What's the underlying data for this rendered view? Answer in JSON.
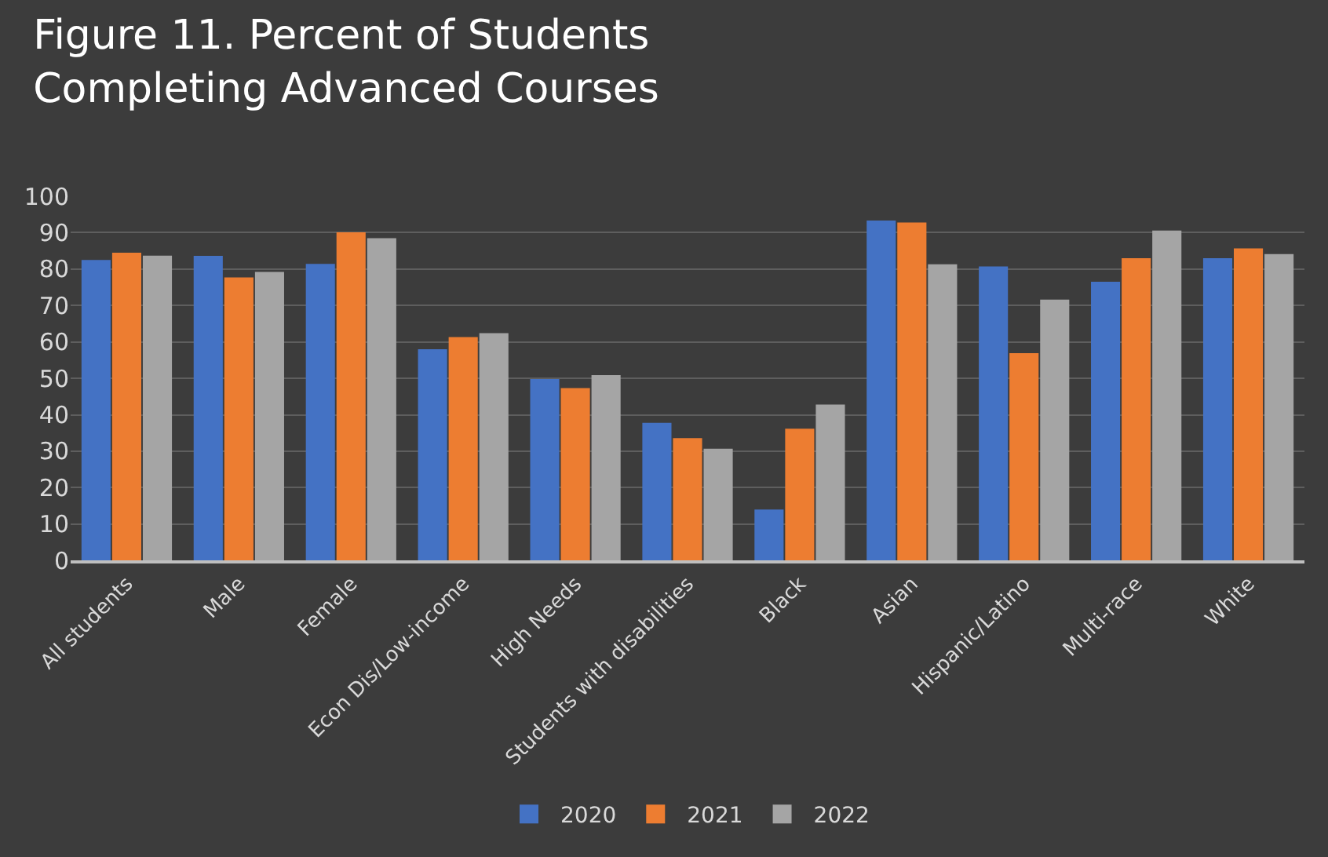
{
  "chart_data": {
    "type": "bar",
    "title": "Figure 11. Percent of Students Completing Advanced Courses",
    "categories": [
      "All students",
      "Male",
      "Female",
      "Econ Dis/Low-income",
      "High Needs",
      "Students with disabilities",
      "Black",
      "Asian",
      "Hispanic/Latino",
      "Multi-race",
      "White"
    ],
    "series": [
      {
        "name": "2020",
        "color": "#4472c4",
        "values": [
          82.5,
          83.6,
          81.4,
          58,
          49.8,
          37.8,
          14,
          93.3,
          80.7,
          76.5,
          83
        ]
      },
      {
        "name": "2021",
        "color": "#ed7d31",
        "values": [
          84.5,
          77.7,
          90.1,
          61.3,
          47.3,
          33.6,
          36.2,
          92.8,
          56.9,
          83,
          85.7
        ]
      },
      {
        "name": "2022",
        "color": "#a5a5a5",
        "values": [
          83.7,
          79.2,
          88.5,
          62.4,
          50.9,
          30.7,
          42.8,
          81.3,
          71.6,
          90.6,
          84.1
        ]
      }
    ],
    "ylim": [
      0,
      100
    ],
    "yticks": [
      0,
      10,
      20,
      30,
      40,
      50,
      60,
      70,
      80,
      90,
      100
    ],
    "grid": "y",
    "legend": "bottom"
  }
}
